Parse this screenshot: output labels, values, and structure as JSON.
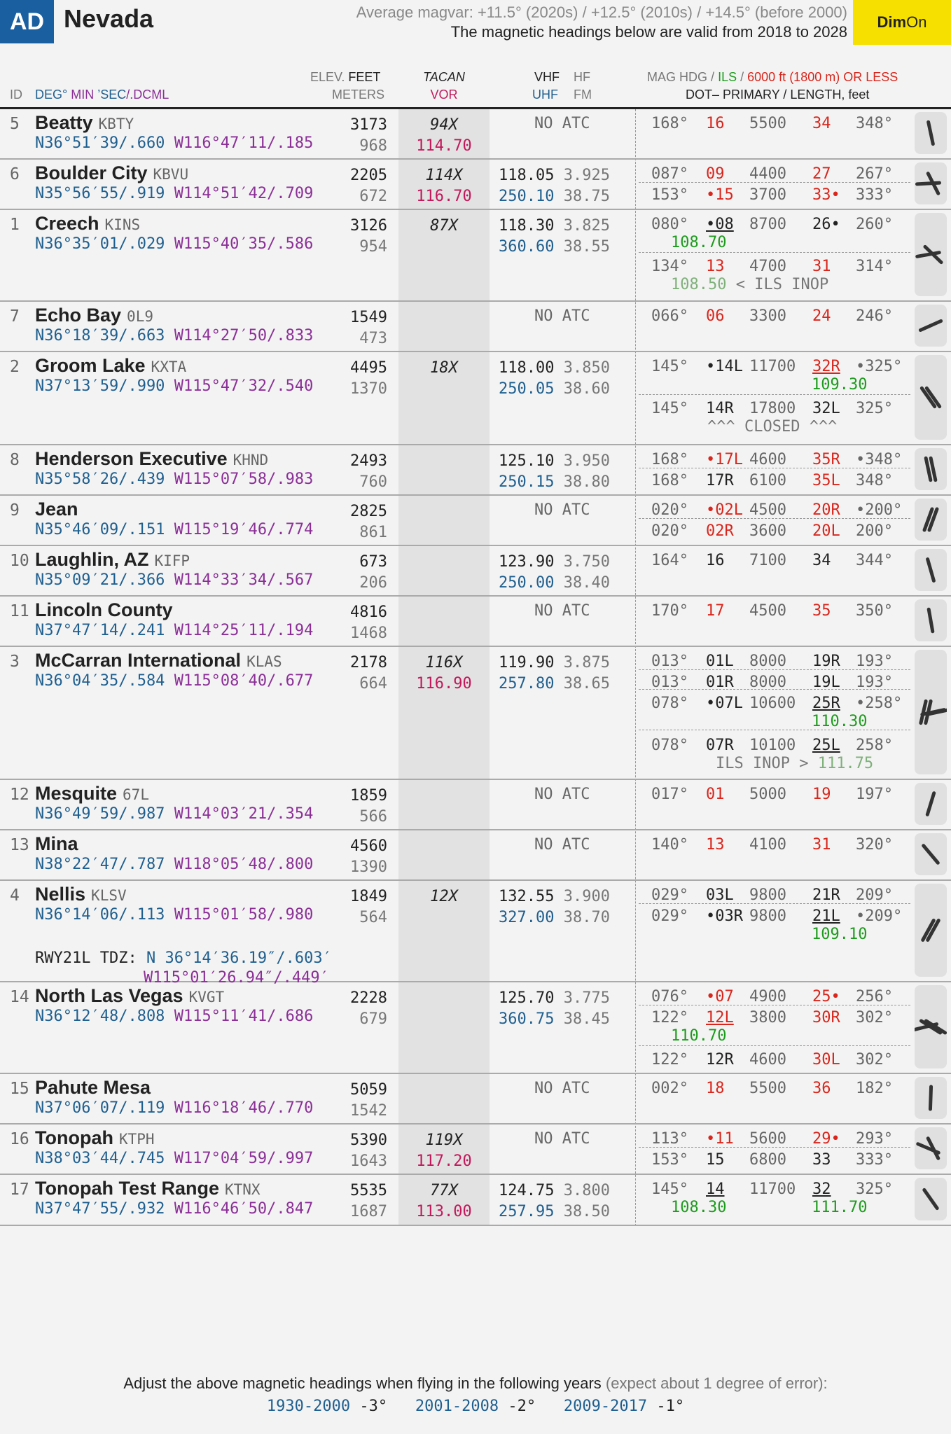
{
  "header": {
    "badge": "AD",
    "state": "Nevada",
    "magvar": "Average magvar: +11.5° (2020s) / +12.5° (2010s) / +14.5° (before 2000)",
    "valid_prefix": "The magnetic headings below are valid from",
    "valid_years": "2018 to 2028",
    "dim_bold": "Dim",
    "dim_rest": "On"
  },
  "columns": {
    "id": "ID",
    "deg": "DEG°",
    "min": "MIN",
    "sec": "’SEC",
    "dcml": "/.DCML",
    "elev": "ELEV.",
    "feet": "FEET",
    "meters": "METERS",
    "tacan": "TACAN",
    "vor": "VOR",
    "vhf": "VHF",
    "hf": "HF",
    "uhf": "UHF",
    "fm": "FM",
    "maghdg": "MAG HDG",
    "ils": "ILS",
    "short": "6000 ft (1800 m) OR LESS",
    "dot": "DOT",
    "primary": "– PRIMARY / LENGTH, feet"
  },
  "airports": [
    {
      "id": "5",
      "name": "Beatty",
      "icao": "KBTY",
      "lat": "N36°51′39/.660",
      "lon": "W116°47′11/.185",
      "ft": "3173",
      "m": "968",
      "tacan": "94X",
      "vor": "114.70",
      "vhf": "",
      "hf": "",
      "uhf": "",
      "fm": "",
      "noatc": "NO ATC",
      "runways": [
        {
          "h1": "168°",
          "r1": "16",
          "len": "5500",
          "r2": "34",
          "h2": "348°"
        }
      ]
    },
    {
      "id": "6",
      "name": "Boulder City",
      "icao": "KBVU",
      "lat": "N35°56′55/.919",
      "lon": "W114°51′42/.709",
      "ft": "2205",
      "m": "672",
      "tacan": "114X",
      "vor": "116.70",
      "vhf": "118.05",
      "hf": "3.925",
      "uhf": "250.10",
      "fm": "38.75",
      "noatc": "",
      "runways": [
        {
          "h1": "087°",
          "r1": "09",
          "len": "4400",
          "r2": "27",
          "h2": "267°"
        },
        {
          "h1": "153°",
          "r1": "•15",
          "len": "3700",
          "r2": "33•",
          "h2": "333°"
        }
      ]
    },
    {
      "id": "1",
      "name": "Creech",
      "icao": "KINS",
      "lat": "N36°35′01/.029",
      "lon": "W115°40′35/.586",
      "ft": "3126",
      "m": "954",
      "tacan": "87X",
      "vor": "",
      "vhf": "118.30",
      "hf": "3.825",
      "uhf": "360.60",
      "fm": "38.55",
      "noatc": "",
      "runways": [
        {
          "h1": "080°",
          "r1": "•08",
          "len": "8700",
          "r2": "26•",
          "h2": "260°",
          "ils1": "108.70"
        },
        {
          "h1": "134°",
          "r1": "13",
          "len": "4700",
          "r2": "31",
          "h2": "314°",
          "ilsnote1": "108.50",
          "ilsnote2": "< ILS INOP"
        }
      ]
    },
    {
      "id": "7",
      "name": "Echo Bay",
      "icao": "0L9",
      "lat": "N36°18′39/.663",
      "lon": "W114°27′50/.833",
      "ft": "1549",
      "m": "473",
      "tacan": "",
      "vor": "",
      "noatc": "NO ATC",
      "runways": [
        {
          "h1": "066°",
          "r1": "06",
          "len": "3300",
          "r2": "24",
          "h2": "246°"
        }
      ]
    },
    {
      "id": "2",
      "name": "Groom Lake",
      "icao": "KXTA",
      "lat": "N37°13′59/.990",
      "lon": "W115°47′32/.540",
      "ft": "4495",
      "m": "1370",
      "tacan": "18X",
      "vor": "",
      "vhf": "118.00",
      "hf": "3.850",
      "uhf": "250.05",
      "fm": "38.60",
      "noatc": "",
      "runways": [
        {
          "h1": "145°",
          "r1": "•14L",
          "len": "11700",
          "r2": "32R",
          "h2": "•325°",
          "ils2": "109.30"
        },
        {
          "h1": "145°",
          "r1": "14R",
          "len": "17800",
          "r2": "32L",
          "h2": "325°",
          "closed": "^^^ CLOSED ^^^"
        }
      ]
    },
    {
      "id": "8",
      "name": "Henderson Executive",
      "icao": "KHND",
      "lat": "N35°58′26/.439",
      "lon": "W115°07′58/.983",
      "ft": "2493",
      "m": "760",
      "tacan": "",
      "vor": "",
      "vhf": "125.10",
      "hf": "3.950",
      "uhf": "250.15",
      "fm": "38.80",
      "noatc": "",
      "runways": [
        {
          "h1": "168°",
          "r1": "•17L",
          "len": "4600",
          "r2": "35R",
          "h2": "•348°"
        },
        {
          "h1": "168°",
          "r1": "17R",
          "len": "6100",
          "r2": "35L",
          "h2": "348°"
        }
      ]
    },
    {
      "id": "9",
      "name": "Jean",
      "icao": "",
      "lat": "N35°46′09/.151",
      "lon": "W115°19′46/.774",
      "ft": "2825",
      "m": "861",
      "tacan": "",
      "vor": "",
      "noatc": "NO ATC",
      "runways": [
        {
          "h1": "020°",
          "r1": "•02L",
          "len": "4500",
          "r2": "20R",
          "h2": "•200°"
        },
        {
          "h1": "020°",
          "r1": "02R",
          "len": "3600",
          "r2": "20L",
          "h2": "200°"
        }
      ]
    },
    {
      "id": "10",
      "name": "Laughlin, AZ",
      "icao": "KIFP",
      "lat": "N35°09′21/.366",
      "lon": "W114°33′34/.567",
      "ft": "673",
      "m": "206",
      "tacan": "",
      "vor": "",
      "vhf": "123.90",
      "hf": "3.750",
      "uhf": "250.00",
      "fm": "38.40",
      "noatc": "",
      "runways": [
        {
          "h1": "164°",
          "r1": "16",
          "len": "7100",
          "r2": "34",
          "h2": "344°"
        }
      ]
    },
    {
      "id": "11",
      "name": "Lincoln County",
      "icao": "",
      "lat": "N37°47′14/.241",
      "lon": "W114°25′11/.194",
      "ft": "4816",
      "m": "1468",
      "tacan": "",
      "vor": "",
      "noatc": "NO ATC",
      "runways": [
        {
          "h1": "170°",
          "r1": "17",
          "len": "4500",
          "r2": "35",
          "h2": "350°"
        }
      ]
    },
    {
      "id": "3",
      "name": "McCarran International",
      "icao": "KLAS",
      "lat": "N36°04′35/.584",
      "lon": "W115°08′40/.677",
      "ft": "2178",
      "m": "664",
      "tacan": "116X",
      "vor": "116.90",
      "vhf": "119.90",
      "hf": "3.875",
      "uhf": "257.80",
      "fm": "38.65",
      "noatc": "",
      "runways": [
        {
          "h1": "013°",
          "r1": "01L",
          "len": "8000",
          "r2": "19R",
          "h2": "193°"
        },
        {
          "h1": "013°",
          "r1": "01R",
          "len": "8000",
          "r2": "19L",
          "h2": "193°"
        },
        {
          "h1": "078°",
          "r1": "•07L",
          "len": "10600",
          "r2": "25R",
          "h2": "•258°",
          "ils2": "110.30"
        },
        {
          "h1": "078°",
          "r1": "07R",
          "len": "10100",
          "r2": "25L",
          "h2": "258°",
          "ilsnote1": "ILS INOP >",
          "ilsnote2": "111.75"
        }
      ]
    },
    {
      "id": "12",
      "name": "Mesquite",
      "icao": "67L",
      "lat": "N36°49′59/.987",
      "lon": "W114°03′21/.354",
      "ft": "1859",
      "m": "566",
      "tacan": "",
      "vor": "",
      "noatc": "NO ATC",
      "runways": [
        {
          "h1": "017°",
          "r1": "01",
          "len": "5000",
          "r2": "19",
          "h2": "197°"
        }
      ]
    },
    {
      "id": "13",
      "name": "Mina",
      "icao": "",
      "lat": "N38°22′47/.787",
      "lon": "W118°05′48/.800",
      "ft": "4560",
      "m": "1390",
      "tacan": "",
      "vor": "",
      "noatc": "NO ATC",
      "runways": [
        {
          "h1": "140°",
          "r1": "13",
          "len": "4100",
          "r2": "31",
          "h2": "320°"
        }
      ]
    },
    {
      "id": "4",
      "name": "Nellis",
      "icao": "KLSV",
      "lat": "N36°14′06/.113",
      "lon": "W115°01′58/.980",
      "ft": "1849",
      "m": "564",
      "tacan": "12X",
      "vor": "",
      "vhf": "132.55",
      "hf": "3.900",
      "uhf": "327.00",
      "fm": "38.70",
      "noatc": "",
      "tdz_label": "RWY21L TDZ:",
      "tdz_lat": "N 36°14′36.19″/.603′",
      "tdz_lon": "W115°01′26.94″/.449′",
      "runways": [
        {
          "h1": "029°",
          "r1": "03L",
          "len": "9800",
          "r2": "21R",
          "h2": "209°"
        },
        {
          "h1": "029°",
          "r1": "•03R",
          "len": "9800",
          "r2": "21L",
          "h2": "•209°",
          "ils2": "109.10"
        }
      ]
    },
    {
      "id": "14",
      "name": "North Las Vegas",
      "icao": "KVGT",
      "lat": "N36°12′48/.808",
      "lon": "W115°11′41/.686",
      "ft": "2228",
      "m": "679",
      "tacan": "",
      "vor": "",
      "vhf": "125.70",
      "hf": "3.775",
      "uhf": "360.75",
      "fm": "38.45",
      "noatc": "",
      "runways": [
        {
          "h1": "076°",
          "r1": "•07",
          "len": "4900",
          "r2": "25•",
          "h2": "256°"
        },
        {
          "h1": "122°",
          "r1": "12L",
          "len": "3800",
          "r2": "30R",
          "h2": "302°",
          "ils1": "110.70"
        },
        {
          "h1": "122°",
          "r1": "12R",
          "len": "4600",
          "r2": "30L",
          "h2": "302°"
        }
      ]
    },
    {
      "id": "15",
      "name": "Pahute Mesa",
      "icao": "",
      "lat": "N37°06′07/.119",
      "lon": "W116°18′46/.770",
      "ft": "5059",
      "m": "1542",
      "tacan": "",
      "vor": "",
      "noatc": "NO ATC",
      "runways": [
        {
          "h1": "002°",
          "r1": "18",
          "len": "5500",
          "r2": "36",
          "h2": "182°"
        }
      ]
    },
    {
      "id": "16",
      "name": "Tonopah",
      "icao": "KTPH",
      "lat": "N38°03′44/.745",
      "lon": "W117°04′59/.997",
      "ft": "5390",
      "m": "1643",
      "tacan": "119X",
      "vor": "117.20",
      "noatc": "NO ATC",
      "runways": [
        {
          "h1": "113°",
          "r1": "•11",
          "len": "5600",
          "r2": "29•",
          "h2": "293°"
        },
        {
          "h1": "153°",
          "r1": "15",
          "len": "6800",
          "r2": "33",
          "h2": "333°"
        }
      ]
    },
    {
      "id": "17",
      "name": "Tonopah Test Range",
      "icao": "KTNX",
      "lat": "N37°47′55/.932",
      "lon": "W116°46′50/.847",
      "ft": "5535",
      "m": "1687",
      "tacan": "77X",
      "vor": "113.00",
      "vhf": "124.75",
      "hf": "3.800",
      "uhf": "257.95",
      "fm": "38.50",
      "noatc": "",
      "runways": [
        {
          "h1": "145°",
          "r1": "14",
          "len": "11700",
          "r2": "32",
          "h2": "325°",
          "ils1": "108.30",
          "ils2": "111.70"
        }
      ]
    }
  ],
  "footer": {
    "line1_main": "Adjust the above magnetic headings when flying in the following years",
    "line1_note": "(expect about 1 degree of error):",
    "adj": [
      {
        "years": "1930-2000",
        "delta": "-3°"
      },
      {
        "years": "2001-2008",
        "delta": "-2°"
      },
      {
        "years": "2009-2017",
        "delta": "-1°"
      }
    ]
  },
  "colors": {
    "accent": "#1a5fa0",
    "dim": "#f5e000",
    "short_rwy": "#d9261c",
    "ils": "#1d9b1d",
    "vor": "#c2185b"
  }
}
